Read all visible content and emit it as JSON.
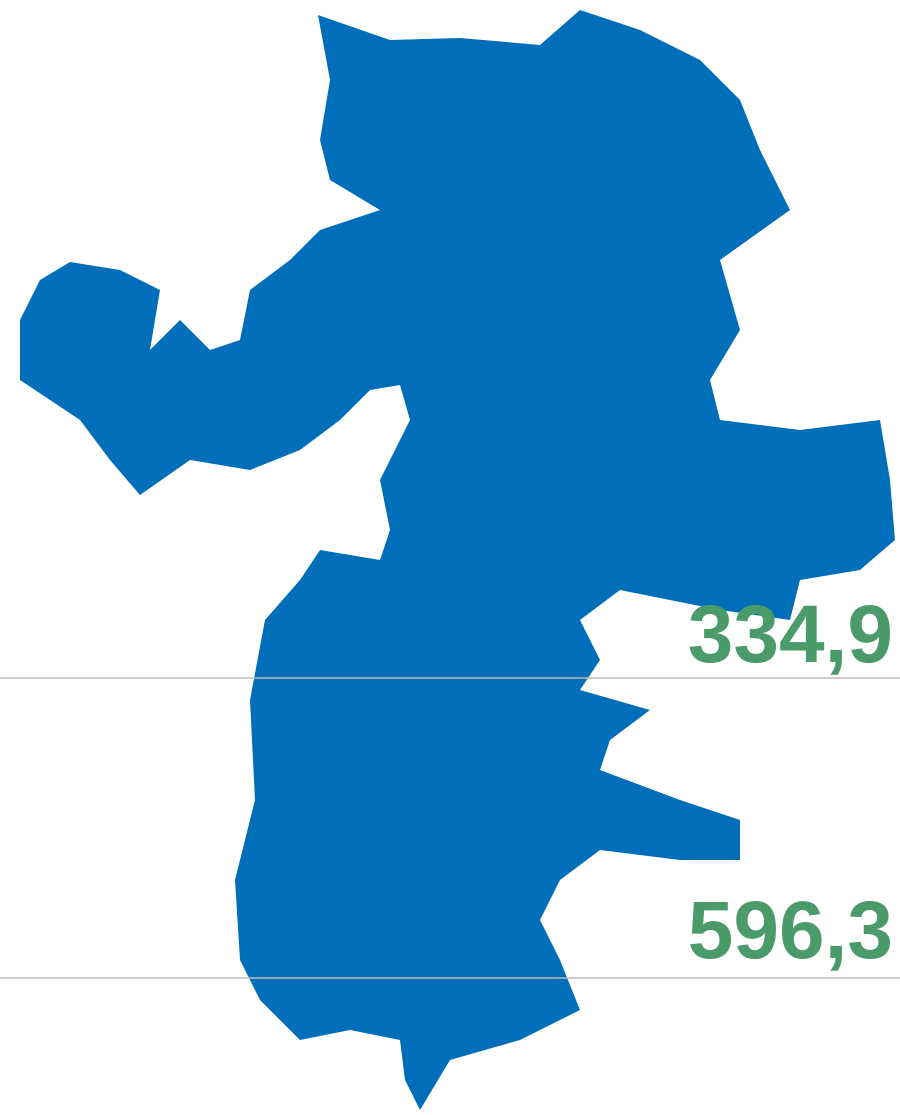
{
  "labels": [
    {
      "text": "334,9"
    },
    {
      "text": "596,3"
    }
  ]
}
